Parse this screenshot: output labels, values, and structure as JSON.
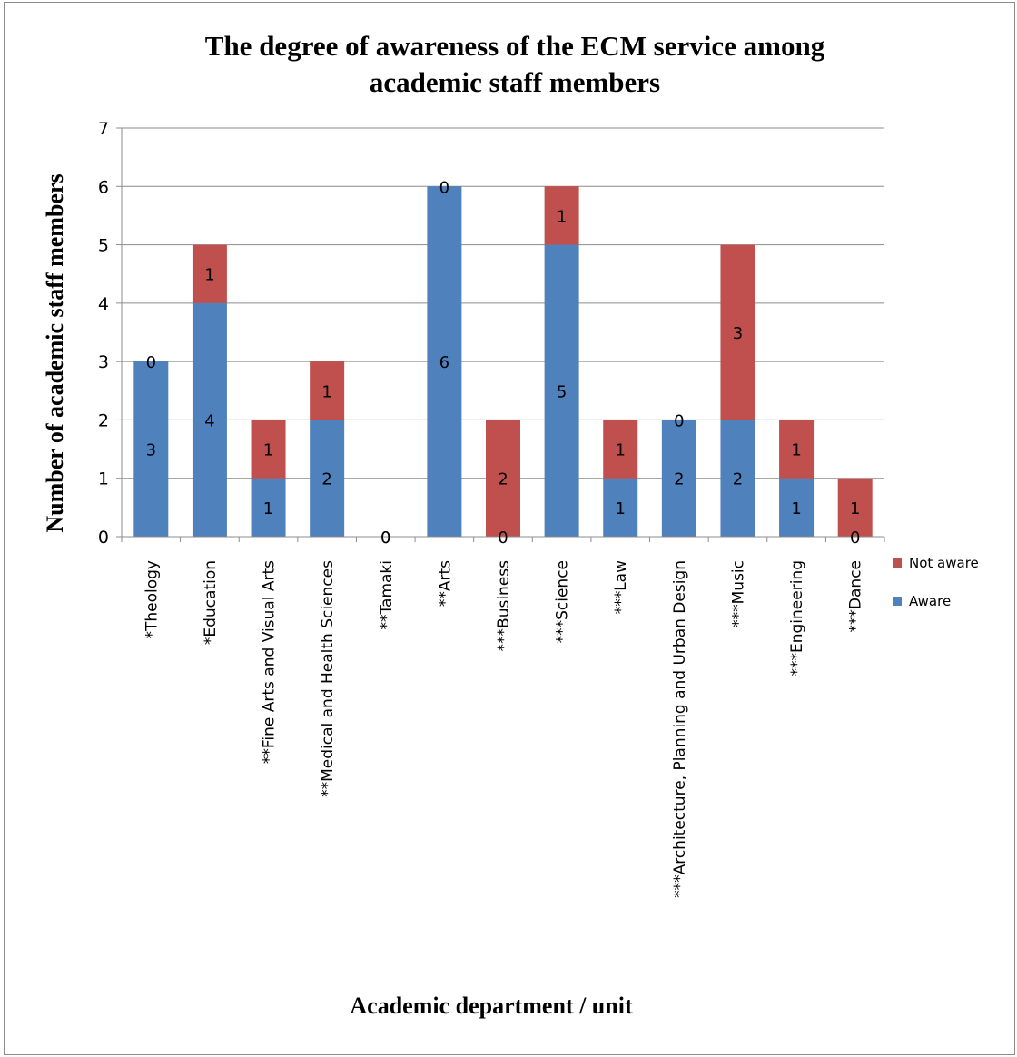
{
  "chart_data": {
    "type": "bar",
    "stacked": true,
    "title": "The degree of awareness of the ECM service among academic staff members",
    "title_lines": [
      "The degree of awareness of the ECM service among",
      "academic staff members"
    ],
    "xlabel": "Academic department / unit",
    "ylabel": "Number of academic staff members",
    "ylim": [
      0,
      7
    ],
    "yticks": [
      0,
      1,
      2,
      3,
      4,
      5,
      6,
      7
    ],
    "grid": true,
    "legend_position": "right",
    "categories": [
      "*Theology",
      "*Education",
      "**Fine Arts and Visual Arts",
      "**Medical and Health Sciences",
      "**Tamaki",
      "**Arts",
      "***Business",
      "***Science",
      "***Law",
      "***Architecture, Planning and Urban Design",
      "***Music",
      "***Engineering",
      "***Dance"
    ],
    "series": [
      {
        "name": "Aware",
        "color": "#4f81bd",
        "values": [
          3,
          4,
          1,
          2,
          0,
          6,
          0,
          5,
          1,
          2,
          2,
          1,
          0
        ]
      },
      {
        "name": "Not aware",
        "color": "#c0504d",
        "values": [
          0,
          1,
          1,
          1,
          0,
          0,
          2,
          1,
          1,
          0,
          3,
          1,
          1
        ]
      }
    ],
    "legend_order": [
      "Not aware",
      "Aware"
    ]
  }
}
